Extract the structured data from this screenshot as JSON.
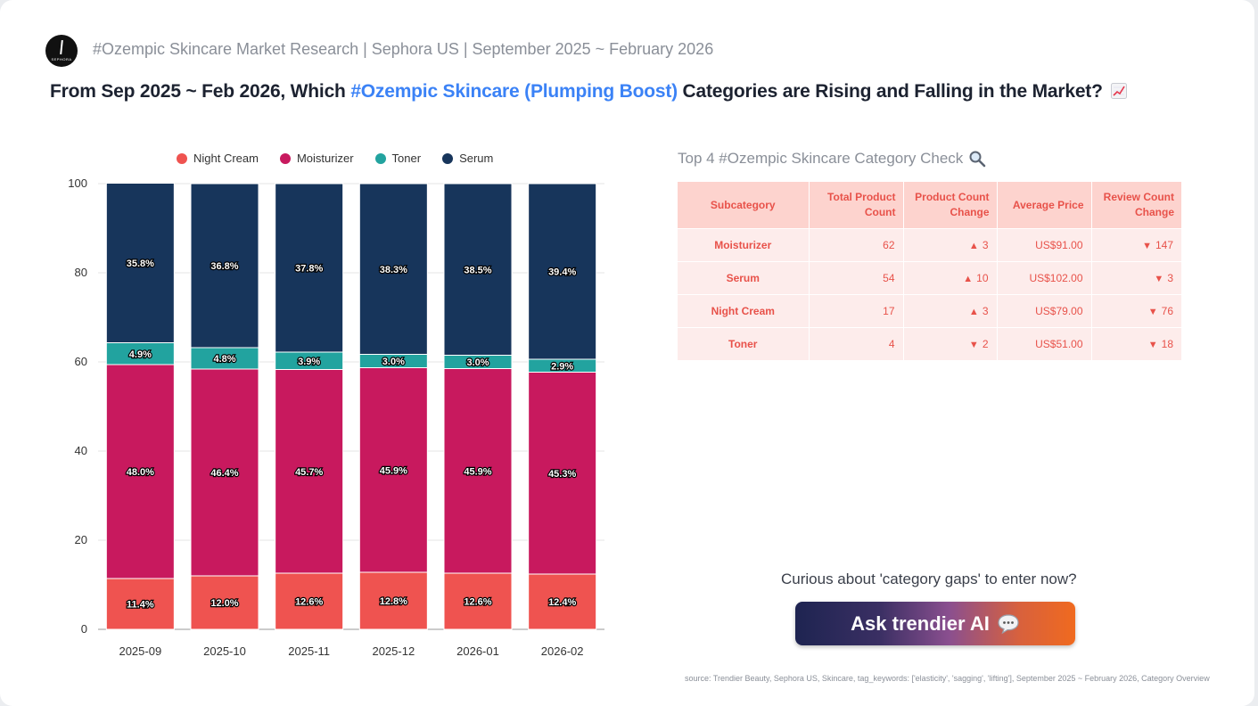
{
  "header": {
    "brand_subtitle": "#Ozempic Skincare Market Research | Sephora US | September 2025 ~ February 2026",
    "logo_text": "SEPHORA",
    "headline_prefix": "From Sep 2025 ~ Feb 2026, Which ",
    "headline_highlight": "#Ozempic Skincare (Plumping Boost)",
    "headline_suffix": " Categories are Rising and Falling in the Market?"
  },
  "chart_data": {
    "type": "bar",
    "stacked": true,
    "categories": [
      "2025-09",
      "2025-10",
      "2025-11",
      "2025-12",
      "2026-01",
      "2026-02"
    ],
    "series": [
      {
        "name": "Night Cream",
        "color": "#ef5350",
        "values": [
          11.4,
          12.0,
          12.6,
          12.8,
          12.6,
          12.4
        ],
        "labels": [
          "11.4%",
          "12.0%",
          "12.6%",
          "12.8%",
          "12.6%",
          "12.4%"
        ]
      },
      {
        "name": "Moisturizer",
        "color": "#c8195e",
        "values": [
          48.0,
          46.4,
          45.7,
          45.9,
          45.9,
          45.3
        ],
        "labels": [
          "48.0%",
          "46.4%",
          "45.7%",
          "45.9%",
          "45.9%",
          "45.3%"
        ]
      },
      {
        "name": "Toner",
        "color": "#22a39f",
        "values": [
          4.9,
          4.8,
          3.9,
          3.0,
          3.0,
          2.9
        ],
        "labels": [
          "4.9%",
          "4.8%",
          "3.9%",
          "3.0%",
          "3.0%",
          "2.9%"
        ]
      },
      {
        "name": "Serum",
        "color": "#17355b",
        "values": [
          35.8,
          36.8,
          37.8,
          38.3,
          38.5,
          39.4
        ],
        "labels": [
          "35.8%",
          "36.8%",
          "37.8%",
          "38.3%",
          "38.5%",
          "39.4%"
        ]
      }
    ],
    "ylim": [
      0,
      100
    ],
    "yticks": [
      "0",
      "20",
      "40",
      "60",
      "80",
      "100"
    ],
    "grid": true,
    "legend_position": "top"
  },
  "table": {
    "title": "Top 4 #Ozempic Skincare Category Check",
    "title_icon": "magnifier-icon",
    "headers": [
      "Subcategory",
      "Total Product Count",
      "Product Count Change",
      "Average Price",
      "Review Count Change"
    ],
    "rows": [
      {
        "subcategory": "Moisturizer",
        "total": "62",
        "pc_dir": "up",
        "pc_arrow": "▲",
        "pc": "3",
        "price": "US$91.00",
        "rc_dir": "down",
        "rc_arrow": "▼",
        "rc": "147"
      },
      {
        "subcategory": "Serum",
        "total": "54",
        "pc_dir": "up",
        "pc_arrow": "▲",
        "pc": "10",
        "price": "US$102.00",
        "rc_dir": "down",
        "rc_arrow": "▼",
        "rc": "3"
      },
      {
        "subcategory": "Night Cream",
        "total": "17",
        "pc_dir": "up",
        "pc_arrow": "▲",
        "pc": "3",
        "price": "US$79.00",
        "rc_dir": "down",
        "rc_arrow": "▼",
        "rc": "76"
      },
      {
        "subcategory": "Toner",
        "total": "4",
        "pc_dir": "down",
        "pc_arrow": "▼",
        "pc": "2",
        "price": "US$51.00",
        "rc_dir": "down",
        "rc_arrow": "▼",
        "rc": "18"
      }
    ]
  },
  "cta": {
    "prompt": "Curious about 'category gaps' to enter now?",
    "button_label": "Ask trendier AI",
    "button_icon": "speech-bubble-icon"
  },
  "footer": {
    "source": "source: Trendier Beauty, Sephora US, Skincare, tag_keywords: ['elasticity', 'sagging', 'lifting'], September 2025 ~ February 2026, Category Overview"
  },
  "colors": {
    "accent_blue": "#3b82f6",
    "table_header_bg": "#fdd3ce",
    "table_row_bg": "#fdeceb",
    "table_text": "#e8524a",
    "down_arrow": "#8c97ad"
  }
}
